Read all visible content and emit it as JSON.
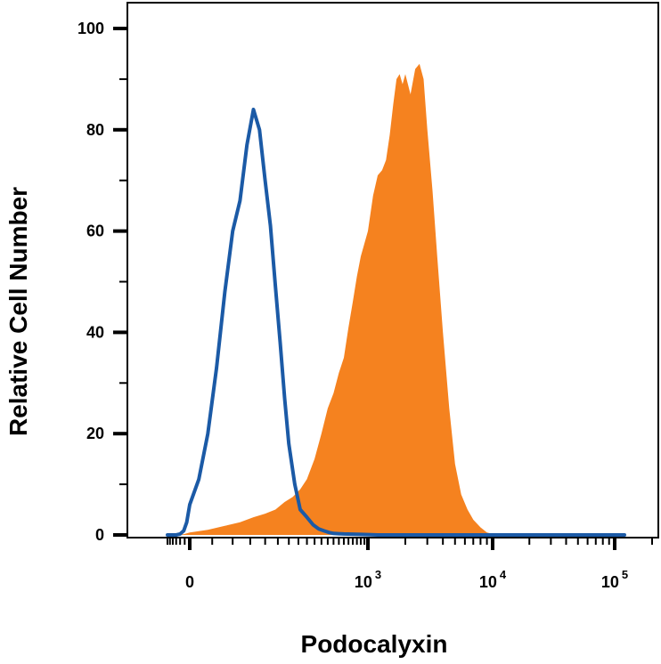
{
  "chart_data": {
    "type": "area",
    "title": "",
    "xlabel": "Podocalyxin",
    "ylabel": "Relative Cell Number",
    "x_scale": "biexponential",
    "ylim": [
      0,
      100
    ],
    "y_ticks": [
      {
        "value": 0,
        "label": "0"
      },
      {
        "value": 20,
        "label": "20"
      },
      {
        "value": 40,
        "label": "40"
      },
      {
        "value": 60,
        "label": "60"
      },
      {
        "value": 80,
        "label": "80"
      },
      {
        "value": 100,
        "label": "100"
      }
    ],
    "x_ticks": [
      {
        "value": 0,
        "base": "0",
        "exp": ""
      },
      {
        "value": 1000,
        "base": "10",
        "exp": "3"
      },
      {
        "value": 10000,
        "base": "10",
        "exp": "4"
      },
      {
        "value": 100000,
        "base": "10",
        "exp": "5"
      }
    ],
    "grid": false,
    "legend": "none",
    "series": [
      {
        "style": "filled",
        "color": "#F5821F",
        "x": [
          -300,
          -200,
          -100,
          -50,
          0,
          40,
          80,
          120,
          160,
          200,
          240,
          280,
          320,
          360,
          400,
          450,
          500,
          550,
          600,
          650,
          700,
          750,
          800,
          850,
          900,
          1000,
          1100,
          1200,
          1300,
          1400,
          1500,
          1600,
          1700,
          1800,
          1900,
          2000,
          2200,
          2400,
          2600,
          2800,
          3000,
          3300,
          3600,
          4000,
          4500,
          5000,
          5600,
          6300,
          7000,
          8000,
          9000,
          10000,
          11000,
          12000,
          14000,
          20000,
          50000,
          120000
        ],
        "y": [
          0,
          0,
          0,
          0.2,
          0.5,
          1,
          1.8,
          2.5,
          3.5,
          4.2,
          5,
          6.5,
          7.5,
          9,
          11,
          15,
          20,
          25,
          28,
          32,
          35,
          41,
          46,
          51,
          55,
          60,
          67,
          71,
          72,
          74,
          79,
          85,
          90,
          91,
          89,
          91,
          87,
          92,
          93,
          90,
          80,
          68,
          55,
          40,
          25,
          14,
          8,
          5,
          3,
          1.5,
          0.5,
          0.2,
          0,
          0,
          0,
          0,
          0,
          0
        ]
      },
      {
        "style": "line",
        "color": "#1B5AA6",
        "x": [
          -300,
          -150,
          -100,
          -60,
          -30,
          0,
          20,
          40,
          60,
          80,
          100,
          120,
          140,
          160,
          180,
          200,
          220,
          240,
          260,
          280,
          300,
          330,
          360,
          400,
          440,
          480,
          520,
          560,
          600,
          700,
          900,
          1200,
          2000,
          5000,
          20000,
          120000
        ],
        "y": [
          0,
          0,
          0.2,
          0.8,
          2.5,
          6,
          11,
          20,
          33,
          48,
          60,
          66,
          77,
          84,
          80,
          70,
          61,
          49,
          38,
          27,
          18,
          10,
          5,
          3.5,
          2,
          1.2,
          0.8,
          0.5,
          0.3,
          0.2,
          0.1,
          0,
          0,
          0,
          0,
          0
        ]
      }
    ]
  }
}
